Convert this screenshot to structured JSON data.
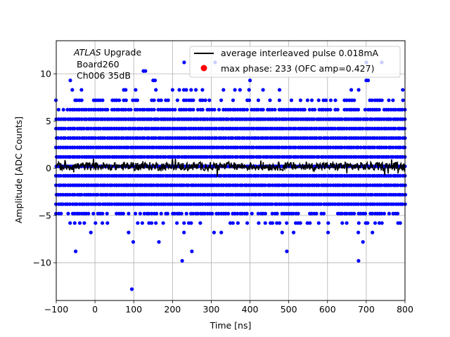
{
  "colors": {
    "background": "#ffffff",
    "samples": "#0000ff",
    "average": "#000000",
    "max_phase": "#ff0000",
    "grid": "#b0b0b0"
  },
  "chart_data": {
    "type": "scatter",
    "xlabel": "Time [ns]",
    "ylabel": "Amplitude [ADC Counts]",
    "xlim": [
      -100,
      800
    ],
    "ylim": [
      -14,
      13.5
    ],
    "xticks": [
      -100,
      0,
      100,
      200,
      300,
      400,
      500,
      600,
      700,
      800
    ],
    "yticks": [
      -10,
      -5,
      0,
      5,
      10
    ],
    "xtick_labels": [
      "−100",
      "0",
      "100",
      "200",
      "300",
      "400",
      "500",
      "600",
      "700",
      "800"
    ],
    "ytick_labels": [
      "−10",
      "−5",
      "0",
      "5",
      "10"
    ],
    "grid": true,
    "legend_position": "top-right",
    "annotation": {
      "italic": "ATLAS",
      "line1_rest": " Upgrade",
      "line2": "Board260",
      "line3": "Ch006 35dB"
    },
    "series": [
      {
        "name": "average interleaved pulse 0.018mA",
        "kind": "line",
        "x_range": [
          -100,
          800
        ],
        "y_range": [
          -1,
          1
        ],
        "y_typical": 0.2
      },
      {
        "name": "max phase: 233 (OFC amp=0.427)",
        "kind": "marker",
        "color": "#ff0000"
      },
      {
        "name": "",
        "kind": "samples",
        "x_range": [
          -100,
          800
        ],
        "levels": [
          {
            "y": 10.3,
            "density": 0.004
          },
          {
            "y": 9.3,
            "density": 0.02
          },
          {
            "y": 8.3,
            "density": 0.12
          },
          {
            "y": 7.2,
            "density": 0.45
          },
          {
            "y": 6.2,
            "density": 0.85
          },
          {
            "y": 5.2,
            "density": 1.0
          },
          {
            "y": 4.2,
            "density": 1.0
          },
          {
            "y": 3.2,
            "density": 1.0
          },
          {
            "y": 2.2,
            "density": 1.0
          },
          {
            "y": 1.2,
            "density": 1.0
          },
          {
            "y": 0.2,
            "density": 1.0
          },
          {
            "y": -0.8,
            "density": 1.0
          },
          {
            "y": -1.8,
            "density": 1.0
          },
          {
            "y": -2.8,
            "density": 1.0
          },
          {
            "y": -3.8,
            "density": 1.0
          },
          {
            "y": -4.8,
            "density": 0.7
          },
          {
            "y": -5.8,
            "density": 0.25
          },
          {
            "y": -6.8,
            "density": 0.08
          },
          {
            "y": -7.8,
            "density": 0.01
          }
        ],
        "outliers": [
          {
            "x": -50,
            "y": -8.8
          },
          {
            "x": 225,
            "y": -9.8
          },
          {
            "x": 250,
            "y": -8.8
          },
          {
            "x": 495,
            "y": -8.8
          },
          {
            "x": 680,
            "y": -9.8
          },
          {
            "x": 95,
            "y": -12.8
          },
          {
            "x": 125,
            "y": 10.3
          },
          {
            "x": 130,
            "y": 10.3
          },
          {
            "x": 230,
            "y": 11.2
          },
          {
            "x": 310,
            "y": 11.2
          },
          {
            "x": 700,
            "y": 11.2
          },
          {
            "x": 740,
            "y": 11.2
          },
          {
            "x": 150,
            "y": 9.3
          },
          {
            "x": 155,
            "y": 9.3
          },
          {
            "x": 400,
            "y": 9.3
          },
          {
            "x": 700,
            "y": 9.3
          },
          {
            "x": 705,
            "y": 9.3
          }
        ]
      }
    ]
  }
}
